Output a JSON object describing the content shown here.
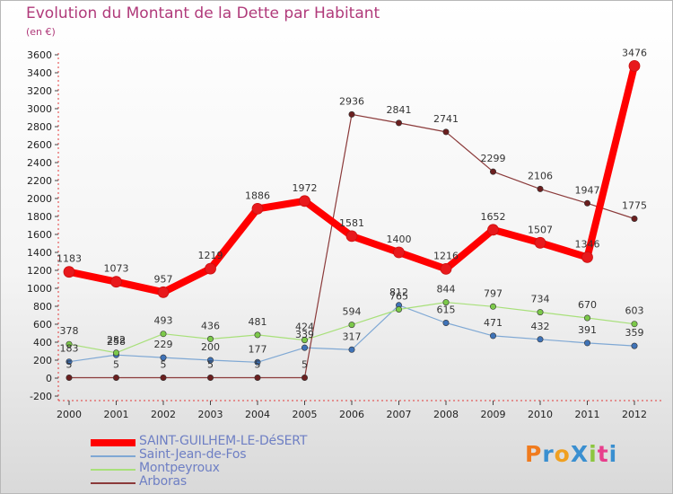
{
  "chart_data": {
    "type": "line",
    "title": "Evolution du Montant de la Dette par Habitant",
    "subtitle": "(en €)",
    "x": [
      "2000",
      "2001",
      "2002",
      "2003",
      "2004",
      "2005",
      "2006",
      "2007",
      "2008",
      "2009",
      "2010",
      "2011",
      "2012"
    ],
    "ylim": [
      -200,
      3600
    ],
    "yticks": [
      -200,
      0,
      200,
      400,
      600,
      800,
      1000,
      1200,
      1400,
      1600,
      1800,
      2000,
      2200,
      2400,
      2600,
      2800,
      3000,
      3200,
      3400,
      3600
    ],
    "grid": false,
    "legend": "bottom-left",
    "series": [
      {
        "name": "SAINT-GUILHEM-LE-DéSERT",
        "color": "#ff0000",
        "marker": "#e8191c",
        "emphasis": true,
        "values": [
          1183,
          1073,
          957,
          1219,
          1886,
          1972,
          1581,
          1400,
          1216,
          1652,
          1507,
          1346,
          3476
        ],
        "labels": [
          "1183",
          "1073",
          "957",
          "1219",
          "1886",
          "1972",
          "1581",
          "1400",
          "1216",
          "1652",
          "1507",
          "1346",
          "3476"
        ]
      },
      {
        "name": "Saint-Jean-de-Fos",
        "color": "#7fa8d4",
        "marker": "#3f73b8",
        "values": [
          183,
          258,
          229,
          200,
          177,
          339,
          317,
          812,
          615,
          471,
          432,
          391,
          359
        ],
        "labels": [
          "183",
          "258",
          "229",
          "200",
          "177",
          "339",
          "317",
          "812",
          "615",
          "471",
          "432",
          "391",
          "359"
        ]
      },
      {
        "name": "Montpeyroux",
        "color": "#a8e07a",
        "marker": "#7cc94a",
        "values": [
          378,
          282,
          493,
          436,
          481,
          424,
          594,
          765,
          844,
          797,
          734,
          670,
          603
        ],
        "labels": [
          "378",
          "282",
          "493",
          "436",
          "481",
          "424",
          "594",
          "765",
          "844",
          "797",
          "734",
          "670",
          "603"
        ]
      },
      {
        "name": "Arboras",
        "color": "#8b3a3a",
        "marker": "#6b1f1f",
        "values": [
          5,
          5,
          5,
          5,
          5,
          5,
          2936,
          2841,
          2741,
          2299,
          2106,
          1947,
          1775
        ],
        "labels": [
          "5",
          "5",
          "5",
          "5",
          "5",
          "5",
          "2936",
          "2841",
          "2741",
          "2299",
          "2106",
          "1947",
          "1775"
        ]
      }
    ]
  },
  "logo": {
    "text": "ProXiti",
    "letters": [
      "P",
      "r",
      "o",
      "X",
      "i",
      "t",
      "i"
    ],
    "colors": [
      "#f07b1e",
      "#3a8fd0",
      "#f0a020",
      "#3a8fd0",
      "#8cc63f",
      "#e83e8c",
      "#3a8fd0"
    ]
  }
}
